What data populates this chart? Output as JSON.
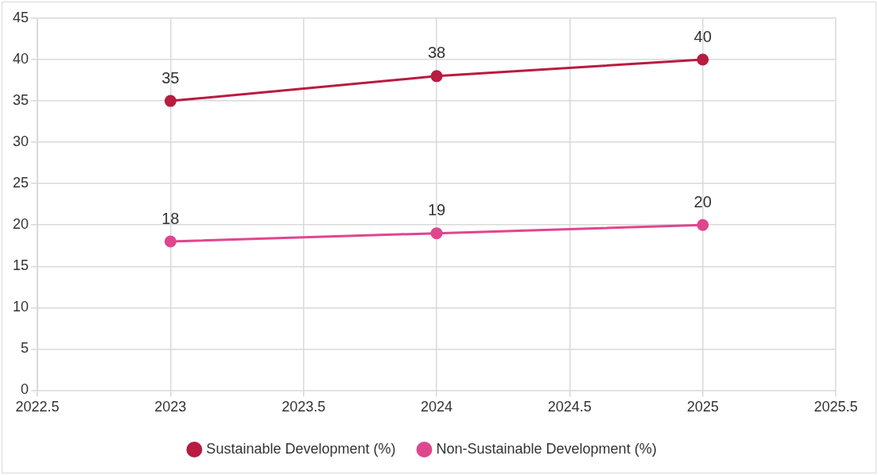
{
  "chart_data": {
    "type": "line",
    "x": [
      2023,
      2024,
      2025
    ],
    "series": [
      {
        "name": "Sustainable Development (%)",
        "color": "#b81c40",
        "values": [
          35,
          38,
          40
        ]
      },
      {
        "name": "Non-Sustainable Development (%)",
        "color": "#e0468e",
        "values": [
          18,
          19,
          20
        ]
      }
    ],
    "xlim": [
      2022.5,
      2025.5
    ],
    "xticks": [
      2022.5,
      2023,
      2023.5,
      2024,
      2024.5,
      2025,
      2025.5
    ],
    "ylim": [
      0,
      45
    ],
    "yticks": [
      0,
      5,
      10,
      15,
      20,
      25,
      30,
      35,
      40,
      45
    ],
    "grid": true,
    "legend": "bottom",
    "marker": "circle",
    "line_style": "solid",
    "data_labels": true
  }
}
